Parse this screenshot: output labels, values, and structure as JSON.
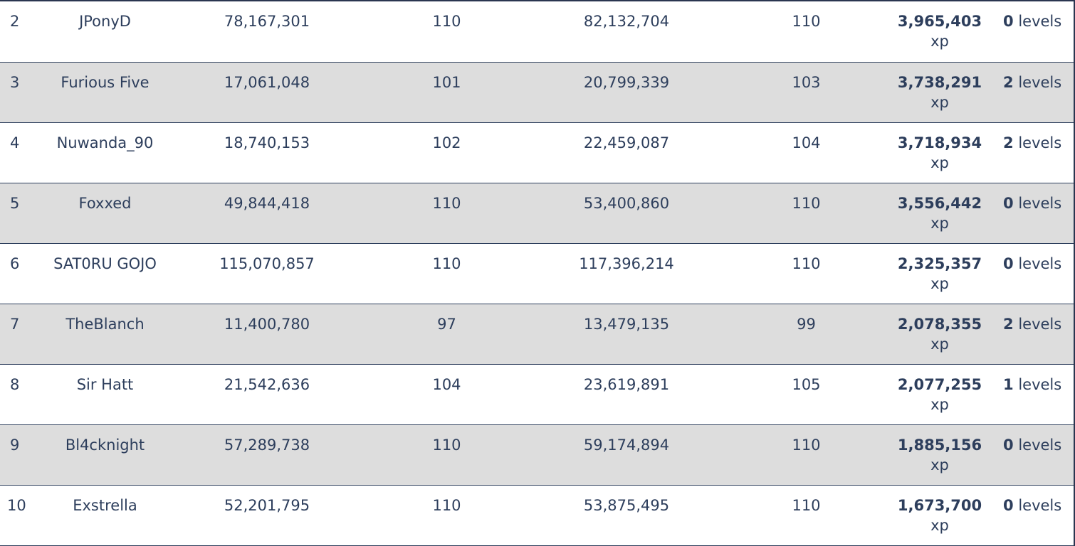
{
  "rows": [
    {
      "rank": "2",
      "name": "JPonyD",
      "start_xp": "78,167,301",
      "start_level": "110",
      "end_xp": "82,132,704",
      "end_level": "110",
      "gain": "3,965,403",
      "gain_unit": "xp",
      "levels": "0",
      "levels_unit": "levels"
    },
    {
      "rank": "3",
      "name": "Furious Five",
      "start_xp": "17,061,048",
      "start_level": "101",
      "end_xp": "20,799,339",
      "end_level": "103",
      "gain": "3,738,291",
      "gain_unit": "xp",
      "levels": "2",
      "levels_unit": "levels"
    },
    {
      "rank": "4",
      "name": "Nuwanda_90",
      "start_xp": "18,740,153",
      "start_level": "102",
      "end_xp": "22,459,087",
      "end_level": "104",
      "gain": "3,718,934",
      "gain_unit": "xp",
      "levels": "2",
      "levels_unit": "levels"
    },
    {
      "rank": "5",
      "name": "Foxxed",
      "start_xp": "49,844,418",
      "start_level": "110",
      "end_xp": "53,400,860",
      "end_level": "110",
      "gain": "3,556,442",
      "gain_unit": "xp",
      "levels": "0",
      "levels_unit": "levels"
    },
    {
      "rank": "6",
      "name": "SAT0RU GOJO",
      "start_xp": "115,070,857",
      "start_level": "110",
      "end_xp": "117,396,214",
      "end_level": "110",
      "gain": "2,325,357",
      "gain_unit": "xp",
      "levels": "0",
      "levels_unit": "levels"
    },
    {
      "rank": "7",
      "name": "TheBlanch",
      "start_xp": "11,400,780",
      "start_level": "97",
      "end_xp": "13,479,135",
      "end_level": "99",
      "gain": "2,078,355",
      "gain_unit": "xp",
      "levels": "2",
      "levels_unit": "levels"
    },
    {
      "rank": "8",
      "name": "Sir Hatt",
      "start_xp": "21,542,636",
      "start_level": "104",
      "end_xp": "23,619,891",
      "end_level": "105",
      "gain": "2,077,255",
      "gain_unit": "xp",
      "levels": "1",
      "levels_unit": "levels"
    },
    {
      "rank": "9",
      "name": "Bl4cknight",
      "start_xp": "57,289,738",
      "start_level": "110",
      "end_xp": "59,174,894",
      "end_level": "110",
      "gain": "1,885,156",
      "gain_unit": "xp",
      "levels": "0",
      "levels_unit": "levels"
    },
    {
      "rank": "10",
      "name": "Exstrella",
      "start_xp": "52,201,795",
      "start_level": "110",
      "end_xp": "53,875,495",
      "end_level": "110",
      "gain": "1,673,700",
      "gain_unit": "xp",
      "levels": "0",
      "levels_unit": "levels"
    }
  ],
  "colors": {
    "text": "#2d3e5c",
    "row_alt_bg": "#dddddd",
    "border": "#2d3e5c"
  }
}
